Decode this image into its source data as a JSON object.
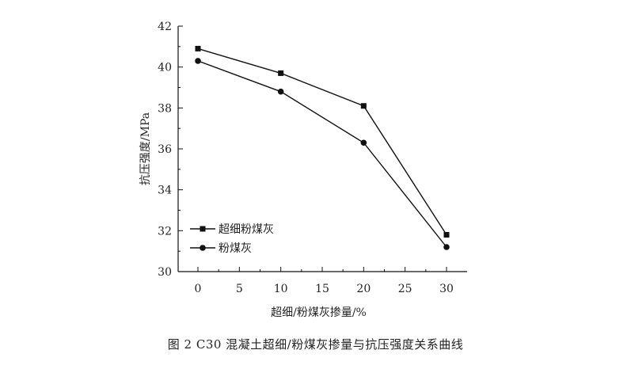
{
  "caption": "图 2   C30 混凝土超细/粉煤灰掺量与抗压强度关系曲线",
  "chart_data": {
    "type": "line",
    "title": "",
    "xlabel": "超细/粉煤灰掺量/%",
    "ylabel": "抗压强度/MPa",
    "xlim": [
      0,
      32
    ],
    "ylim": [
      30,
      42
    ],
    "xticks": [
      0,
      5,
      10,
      15,
      20,
      25,
      30
    ],
    "yticks": [
      30,
      32,
      34,
      36,
      38,
      40,
      42
    ],
    "grid": false,
    "legend_position": "bottom-left",
    "series": [
      {
        "name": "超细粉煤灰",
        "marker": "square",
        "color": "#111111",
        "x": [
          0,
          10,
          20,
          30
        ],
        "y": [
          40.9,
          39.7,
          38.1,
          31.8
        ]
      },
      {
        "name": "粉煤灰",
        "marker": "circle",
        "color": "#111111",
        "x": [
          0,
          10,
          20,
          30
        ],
        "y": [
          40.3,
          38.8,
          36.3,
          31.2
        ]
      }
    ]
  }
}
